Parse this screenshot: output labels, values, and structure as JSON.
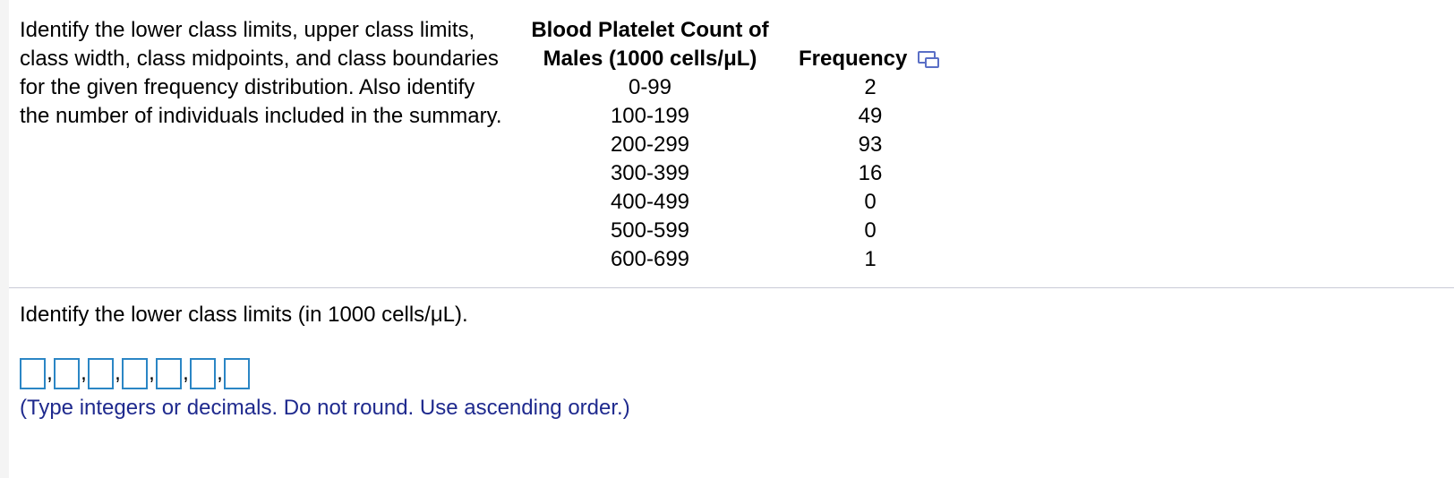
{
  "problem": {
    "instructions": "Identify the lower class limits, upper class limits, class width, class midpoints, and class boundaries for the given frequency distribution. Also identify the number of individuals included in the summary."
  },
  "table": {
    "header_class_line1": "Blood Platelet Count of",
    "header_class_line2": "Males (1000 cells/μL)",
    "header_frequency": "Frequency",
    "rows": [
      {
        "class": "0-99",
        "frequency": "2"
      },
      {
        "class": "100-199",
        "frequency": "49"
      },
      {
        "class": "200-299",
        "frequency": "93"
      },
      {
        "class": "300-399",
        "frequency": "16"
      },
      {
        "class": "400-499",
        "frequency": "0"
      },
      {
        "class": "500-599",
        "frequency": "0"
      },
      {
        "class": "600-699",
        "frequency": "1"
      }
    ],
    "copy_icon": "copy-table-icon"
  },
  "question": {
    "prompt": "Identify the lower class limits (in 1000 cells/μL).",
    "answers": [
      "",
      "",
      "",
      "",
      "",
      "",
      ""
    ],
    "separator": ",",
    "hint": "(Type integers or decimals. Do not round. Use ascending order.)"
  },
  "colors": {
    "input_border": "#2b86c5",
    "hint_text": "#1f2a8e",
    "icon": "#5a6fc6",
    "divider": "#c9cbd6"
  }
}
